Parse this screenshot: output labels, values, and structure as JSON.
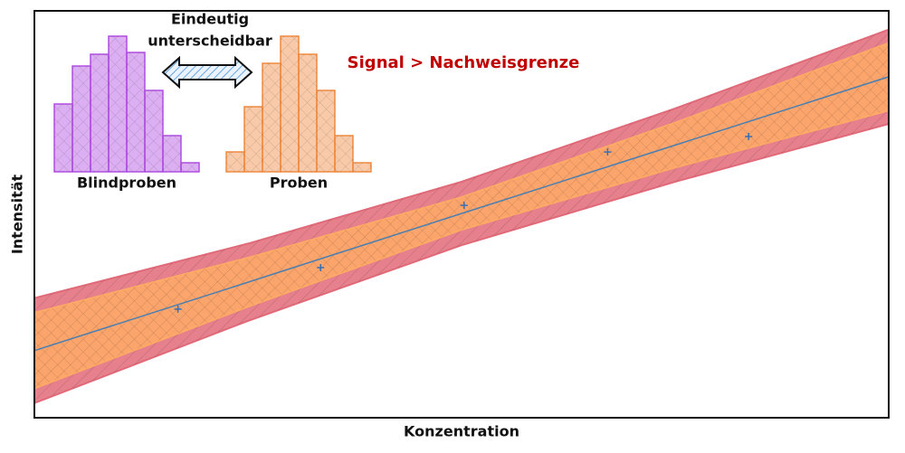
{
  "chart_data": {
    "type": "line",
    "xlabel": "Konzentration",
    "ylabel": "Intensität",
    "xlim": [
      0,
      100
    ],
    "ylim": [
      0,
      100
    ],
    "x": [
      0,
      25,
      50,
      75,
      100
    ],
    "bands": [
      {
        "color": "#e06a78",
        "lower": [
          3.6,
          23.8,
          42.4,
          58.0,
          72.2
        ],
        "upper": [
          29.4,
          42.8,
          58.0,
          76.0,
          95.4
        ]
      },
      {
        "color": "#ffaa66",
        "lower": [
          7.2,
          27.3,
          46.2,
          61.5,
          75.5
        ],
        "upper": [
          25.8,
          39.3,
          54.2,
          72.5,
          92.1
        ]
      }
    ],
    "fit": {
      "color": "#4a7fb0",
      "values": [
        16.5,
        33.3,
        50.2,
        67.0,
        83.8
      ]
    },
    "points": {
      "color": "#3a6fb0",
      "x": [
        16.8,
        33.5,
        50.3,
        67.1,
        83.6
      ],
      "y": [
        26.7,
        36.9,
        52.2,
        65.3,
        69.1
      ]
    },
    "annotation": {
      "text": "Signal > Nachweisgrenze",
      "color": "#c00000"
    },
    "inset": {
      "arrow_label": [
        "Eindeutig",
        "unterscheidbar"
      ],
      "histograms": [
        {
          "name": "Blindproben",
          "color": "#b04ee0",
          "values": [
            7.5,
            11.7,
            13,
            15,
            13.2,
            9,
            4,
            1
          ]
        },
        {
          "name": "Proben",
          "color": "#f08a40",
          "values": [
            2.2,
            7.2,
            12,
            15,
            13,
            9,
            4,
            1
          ]
        }
      ]
    }
  }
}
